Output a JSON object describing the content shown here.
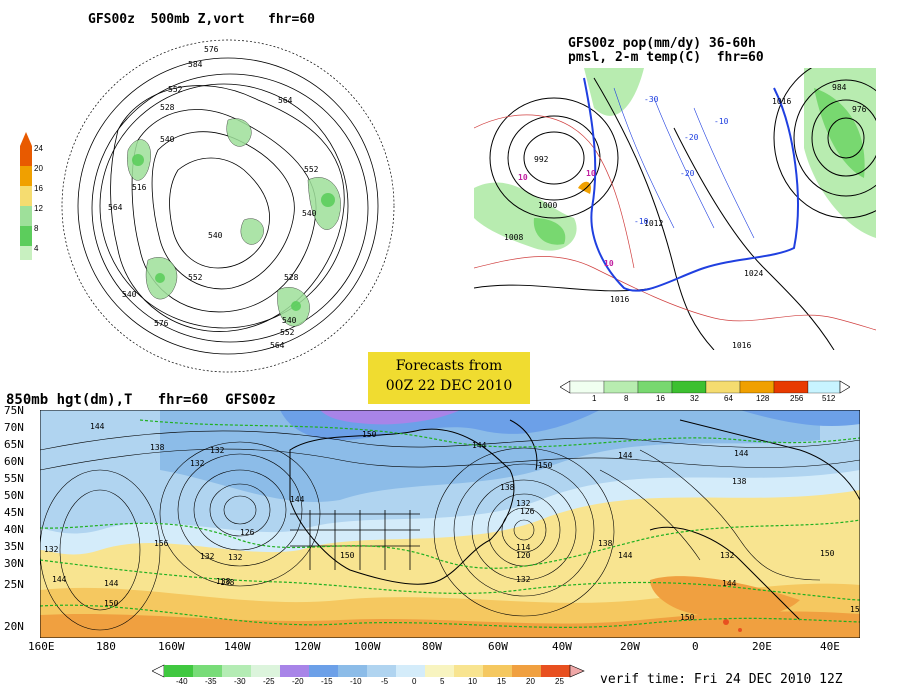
{
  "panels": {
    "hemispheric": {
      "title": "GFS00z  500mb Z,vort   fhr=60",
      "contour_labels": [
        "576",
        "584",
        "552",
        "528",
        "540",
        "564",
        "516",
        "552",
        "564",
        "540",
        "552",
        "540",
        "528",
        "540",
        "576",
        "564",
        "540",
        "552",
        "540"
      ],
      "colorbar": {
        "ticks": [
          "24",
          "20",
          "16",
          "12",
          "8",
          "4"
        ],
        "colors": [
          "#e85a00",
          "#f0a000",
          "#f5dc70",
          "#9ee09a",
          "#5ccd5c",
          "#c8f0c0"
        ]
      }
    },
    "precip": {
      "title_line1": "GFS00z pop(mm/dy) 36-60h",
      "title_line2": "pmsl, 2-m temp(C)  fhr=60",
      "labels": [
        "992",
        "1000",
        "1008",
        "1016",
        "1024",
        "984",
        "976",
        "1016",
        "1012",
        "1000"
      ],
      "temp_labels": [
        "-30",
        "-20",
        "-10",
        "10",
        "10",
        "10",
        "-10",
        "-20"
      ],
      "colorbar": {
        "ticks": [
          "1",
          "8",
          "16",
          "32",
          "64",
          "128",
          "256",
          "512"
        ],
        "colors": [
          "#f0fff0",
          "#b8ecb0",
          "#78d870",
          "#3cc030",
          "#f5dc70",
          "#f0a000",
          "#e83a00",
          "#c8f4ff"
        ]
      }
    },
    "forecast_box": {
      "line1": "Forecasts from",
      "line2": "00Z 22 DEC 2010"
    },
    "main": {
      "title": "850mb hgt(dm),T   fhr=60  GFS00z",
      "lat_ticks": [
        "75N",
        "70N",
        "65N",
        "60N",
        "55N",
        "50N",
        "45N",
        "40N",
        "35N",
        "30N",
        "25N",
        "20N"
      ],
      "lon_ticks": [
        "160E",
        "180",
        "160W",
        "140W",
        "120W",
        "100W",
        "80W",
        "60W",
        "40W",
        "20W",
        "0",
        "20E",
        "40E"
      ],
      "height_labels": [
        "144",
        "138",
        "132",
        "126",
        "132",
        "138",
        "144",
        "150",
        "144",
        "150",
        "144",
        "138",
        "132",
        "126",
        "120",
        "114",
        "120",
        "132",
        "138",
        "144",
        "150",
        "144",
        "138",
        "132",
        "150",
        "150",
        "156",
        "150",
        "132",
        "138",
        "144",
        "150",
        "138",
        "132"
      ],
      "colorbar": {
        "ticks": [
          "-40",
          "-35",
          "-30",
          "-25",
          "-20",
          "-15",
          "-10",
          "-5",
          "0",
          "5",
          "10",
          "15",
          "20",
          "25"
        ],
        "colors": [
          "#40c840",
          "#78dc78",
          "#b4ecb4",
          "#dcf4dc",
          "#a884e8",
          "#6ca0e8",
          "#8cbce8",
          "#b0d4f0",
          "#d4ecfa",
          "#f8f4c0",
          "#f8e490",
          "#f5c860",
          "#f0a040",
          "#e85020",
          "#f0a8a8"
        ]
      }
    },
    "verif_time": "verif time: Fri 24 DEC 2010 12Z"
  }
}
